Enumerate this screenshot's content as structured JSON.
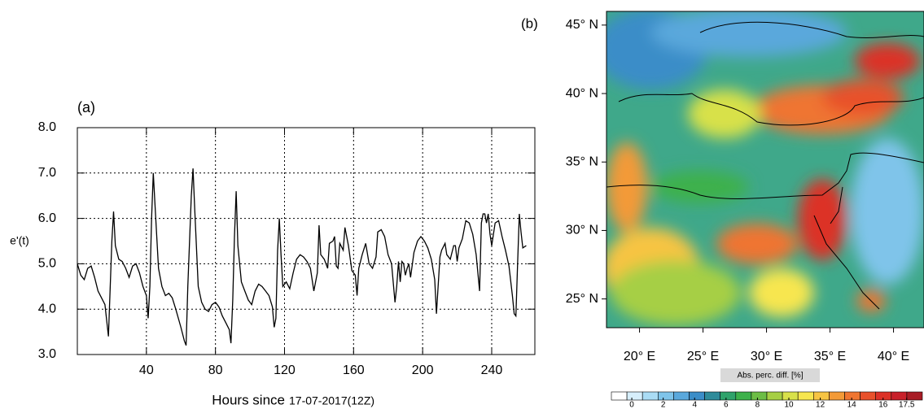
{
  "chart_data": [
    {
      "type": "line",
      "panel_label": "(a)",
      "y_label": "e'(t)",
      "x_label": "Hours since",
      "x_label_date": "17-07-2017(12Z)",
      "xlim": [
        0,
        265
      ],
      "xticks": [
        40,
        80,
        120,
        160,
        200,
        240
      ],
      "ylim": [
        3,
        8
      ],
      "yticks": [
        {
          "value": 3,
          "label": "3.0"
        },
        {
          "value": 4,
          "label": "4.0"
        },
        {
          "value": 5,
          "label": "5.0"
        },
        {
          "value": 6,
          "label": "6.0"
        },
        {
          "value": 7,
          "label": "7.0"
        },
        {
          "value": 8,
          "label": "8.0"
        }
      ],
      "grid": true,
      "x": [
        0,
        2,
        4,
        6,
        8,
        10,
        12,
        14,
        16,
        18,
        20,
        21,
        22,
        24,
        26,
        28,
        30,
        32,
        34,
        36,
        38,
        40,
        41,
        42,
        43,
        44,
        45,
        47,
        49,
        51,
        53,
        55,
        57,
        60,
        62,
        63,
        64,
        66,
        67,
        68,
        70,
        72,
        74,
        76,
        78,
        80,
        82,
        84,
        86,
        88,
        89,
        90,
        91,
        92,
        93,
        95,
        97,
        99,
        101,
        103,
        105,
        107,
        109,
        111,
        113,
        114,
        115,
        116,
        117,
        118,
        119,
        121,
        123,
        125,
        127,
        129,
        131,
        133,
        135,
        137,
        139,
        140,
        141,
        143,
        145,
        146,
        148,
        149,
        150,
        151,
        152,
        154,
        155,
        157,
        159,
        161,
        162,
        163,
        165,
        167,
        169,
        171,
        173,
        174,
        176,
        178,
        180,
        182,
        184,
        185,
        186,
        187,
        188,
        189,
        190,
        191,
        192,
        193,
        195,
        197,
        199,
        201,
        203,
        205,
        207,
        208,
        210,
        211,
        213,
        214,
        216,
        218,
        219,
        220,
        221,
        223,
        225,
        227,
        229,
        231,
        233,
        234,
        235,
        236,
        237,
        238,
        239,
        240,
        242,
        244,
        246,
        248,
        250,
        252,
        253,
        254,
        255,
        256,
        257,
        258,
        260
      ],
      "series": [
        {
          "color": "#000000",
          "values": [
            5.0,
            4.75,
            4.65,
            4.9,
            4.95,
            4.7,
            4.4,
            4.25,
            4.1,
            3.4,
            5.5,
            6.15,
            5.4,
            5.1,
            5.05,
            4.9,
            4.7,
            4.95,
            5.0,
            4.8,
            4.5,
            4.3,
            3.8,
            4.5,
            6.0,
            7.0,
            6.3,
            4.9,
            4.5,
            4.3,
            4.35,
            4.25,
            4.0,
            3.6,
            3.3,
            3.2,
            4.5,
            6.5,
            7.1,
            6.2,
            4.5,
            4.15,
            4.0,
            3.95,
            4.1,
            4.15,
            4.05,
            3.85,
            3.7,
            3.55,
            3.25,
            4.2,
            5.6,
            6.6,
            5.4,
            4.6,
            4.4,
            4.2,
            4.1,
            4.4,
            4.55,
            4.5,
            4.4,
            4.3,
            4.05,
            3.6,
            3.8,
            5.3,
            6.0,
            5.2,
            4.5,
            4.6,
            4.45,
            4.8,
            5.1,
            5.2,
            5.15,
            5.05,
            4.9,
            4.4,
            4.8,
            5.85,
            5.2,
            5.1,
            4.9,
            5.45,
            5.5,
            5.6,
            4.95,
            4.9,
            5.45,
            5.3,
            5.8,
            5.4,
            4.85,
            4.75,
            4.3,
            4.9,
            5.2,
            5.45,
            5.0,
            4.9,
            5.15,
            5.7,
            5.75,
            5.6,
            5.2,
            5.0,
            4.15,
            4.5,
            5.05,
            4.6,
            5.05,
            5.0,
            4.75,
            4.9,
            5.0,
            4.7,
            5.25,
            5.5,
            5.6,
            5.5,
            5.35,
            5.1,
            4.65,
            3.9,
            5.15,
            5.3,
            5.45,
            5.2,
            5.1,
            5.4,
            5.4,
            5.05,
            5.35,
            5.55,
            5.95,
            5.9,
            5.65,
            5.2,
            4.4,
            5.9,
            6.1,
            6.1,
            5.9,
            6.1,
            5.65,
            5.4,
            5.9,
            5.95,
            5.6,
            5.3,
            4.95,
            4.3,
            3.9,
            3.85,
            5.0,
            6.1,
            5.7,
            5.35,
            5.4
          ]
        }
      ]
    },
    {
      "type": "map",
      "panel_label": "(b)",
      "xlim": [
        17.4,
        42.4
      ],
      "xticks": [
        {
          "value": 20,
          "label": "20° E"
        },
        {
          "value": 25,
          "label": "25° E"
        },
        {
          "value": 30,
          "label": "30° E"
        },
        {
          "value": 35,
          "label": "35° E"
        },
        {
          "value": 40,
          "label": "40° E"
        }
      ],
      "ylim": [
        22.9,
        46
      ],
      "yticks": [
        {
          "value": 25,
          "label": "25° N"
        },
        {
          "value": 30,
          "label": "30° N"
        },
        {
          "value": 35,
          "label": "35° N"
        },
        {
          "value": 40,
          "label": "40° N"
        },
        {
          "value": 45,
          "label": "45° N"
        }
      ],
      "colorbar_label": "Abs. perc. diff. [%]",
      "colorbar_lim": [
        -1.3,
        18.5
      ],
      "colorbar_ticks": [
        0,
        2,
        4,
        6,
        8,
        10,
        12,
        14,
        16,
        17.5
      ],
      "colorbar_colors": [
        "#ffffff",
        "#d6eefb",
        "#aadcf5",
        "#7fc4ea",
        "#5aa8dc",
        "#3b8dc8",
        "#2e8b9a",
        "#2fa36b",
        "#3db14b",
        "#6cbd45",
        "#a6cf44",
        "#d8e14a",
        "#f7e64f",
        "#f7c443",
        "#f39a37",
        "#ef7530",
        "#e8512b",
        "#dc3127",
        "#c8202a",
        "#a81c25"
      ]
    }
  ]
}
